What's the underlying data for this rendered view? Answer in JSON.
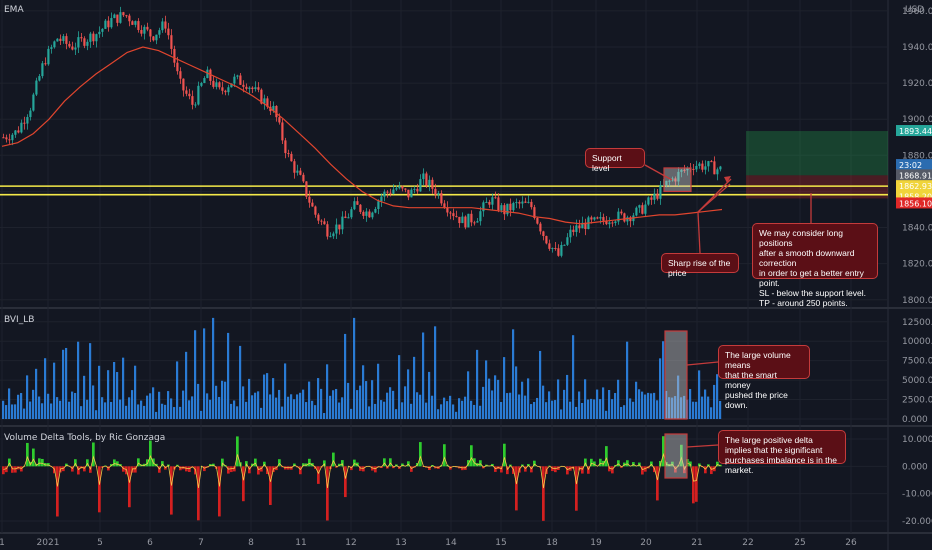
{
  "chart_data": [
    {
      "type": "candlestick",
      "title": "EMA",
      "currency": "USD",
      "y_ticks": [
        "1960.000",
        "1940.000",
        "1920.000",
        "1900.000",
        "1880.000",
        "1860.000",
        "1840.000",
        "1820.000",
        "1800.000"
      ],
      "ylim": [
        1796,
        1966
      ],
      "x_tick_labels": [
        "1",
        "2021",
        "5",
        "6",
        "7",
        "8",
        "11",
        "12",
        "13",
        "14",
        "15",
        "18",
        "19",
        "20",
        "21",
        "22",
        "25",
        "26"
      ],
      "close_path": [
        1890,
        1893,
        1907,
        1932,
        1945,
        1940,
        1944,
        1948,
        1955,
        1958,
        1952,
        1946,
        1953,
        1920,
        1908,
        1925,
        1915,
        1922,
        1920,
        1912,
        1905,
        1880,
        1866,
        1848,
        1838,
        1842,
        1852,
        1848,
        1858,
        1862,
        1858,
        1867,
        1860,
        1850,
        1843,
        1846,
        1856,
        1849,
        1853,
        1852,
        1835,
        1824,
        1838,
        1842,
        1843,
        1846,
        1846,
        1849,
        1856,
        1864,
        1870,
        1875,
        1874,
        1872
      ],
      "ema_path": [
        1885,
        1887,
        1892,
        1900,
        1910,
        1918,
        1925,
        1931,
        1937,
        1940,
        1938,
        1934,
        1930,
        1926,
        1922,
        1918,
        1913,
        1907,
        1900,
        1892,
        1884,
        1875,
        1867,
        1860,
        1855,
        1852,
        1851,
        1851,
        1851,
        1851,
        1851,
        1850,
        1849,
        1848,
        1846,
        1845,
        1843,
        1842,
        1843,
        1844,
        1845,
        1846,
        1847,
        1847,
        1848,
        1849,
        1850
      ],
      "price_tags": [
        {
          "label": "1893.443",
          "color": "#26a69a"
        },
        {
          "label": "23:02",
          "color": "#2b6cb0"
        },
        {
          "label": "1868.918",
          "color": "#555a66"
        },
        {
          "label": "1862.930",
          "color": "#f0d43a"
        },
        {
          "label": "1858.200",
          "color": "#f0d43a"
        },
        {
          "label": "1856.106",
          "color": "#e02828"
        }
      ],
      "support_levels": [
        1862.93,
        1858.2
      ],
      "long_position": {
        "entry": 1868.918,
        "target": 1893.443,
        "stop": 1856.106
      }
    },
    {
      "type": "bar",
      "title": "BVI_LB",
      "y_ticks": [
        "12500.000",
        "10000.000",
        "7500.000",
        "5000.000",
        "2500.000",
        "0.000"
      ],
      "ylim": [
        0,
        13500
      ],
      "values_pattern": [
        3200,
        1800,
        4200,
        2100,
        2600,
        5800,
        3000,
        1500,
        8100,
        2400,
        3600,
        6900,
        4200,
        2900,
        9800,
        4600,
        2000,
        11800,
        5400,
        3500,
        12400,
        7200,
        2600,
        5500,
        3800,
        9200,
        2300,
        4300,
        2800,
        7600,
        3500,
        1900,
        6400,
        2700,
        3900,
        5200,
        2100,
        6800,
        4900,
        3200,
        8600,
        2500,
        4800,
        3100,
        10100,
        2400,
        3600,
        2200,
        3300,
        2700
      ]
    },
    {
      "type": "area",
      "title": "Volume Delta Tools, by Ric Gonzaga",
      "y_ticks": [
        "10.000",
        "0.000",
        "-10.000",
        "-20.000"
      ],
      "ylim": [
        -24,
        14
      ]
    }
  ],
  "notes": {
    "support": "Support level",
    "sharp_rise": "Sharp rise of the price",
    "position": [
      "We may consider long positions",
      "after a smooth downward correction",
      "in order to get a better entry point.",
      "SL - below the support level.",
      "TP - around 250 points."
    ],
    "volume": [
      "The large volume means",
      "that the smart money",
      "pushed the price down."
    ],
    "delta": [
      "The large positive delta",
      "implies that the significant",
      "purchases imbalance is in the market."
    ]
  },
  "colors": {
    "bg": "#131722",
    "up": "#26a69a",
    "down": "#ef5350",
    "ema": "#e0452e",
    "volume": "#2a7bd4",
    "support": "#f5ea4a",
    "delta_up": "#2ecc2e",
    "delta_down": "#d42020"
  }
}
